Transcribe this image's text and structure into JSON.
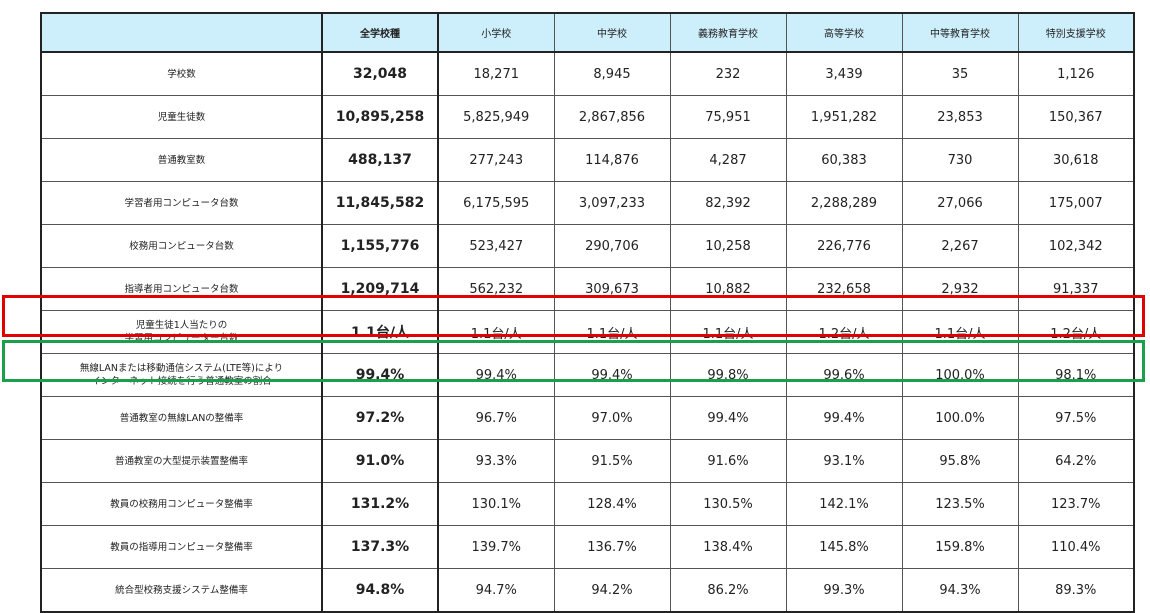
{
  "columns": [
    "",
    "全学校種",
    "小学校",
    "中学校",
    "義務教育学校",
    "高等学校",
    "中等教育学校",
    "特別支援学校"
  ],
  "rows": [
    {
      "label": "学校数",
      "values": [
        "32,048",
        "18,271",
        "8,945",
        "232",
        "3,439",
        "35",
        "1,126"
      ]
    },
    {
      "label": "児童生徒数",
      "values": [
        "10,895,258",
        "5,825,949",
        "2,867,856",
        "75,951",
        "1,951,282",
        "23,853",
        "150,367"
      ]
    },
    {
      "label": "普通教室数",
      "values": [
        "488,137",
        "277,243",
        "114,876",
        "4,287",
        "60,383",
        "730",
        "30,618"
      ]
    },
    {
      "label": "学習者用コンピュータ台数",
      "values": [
        "11,845,582",
        "6,175,595",
        "3,097,233",
        "82,392",
        "2,288,289",
        "27,066",
        "175,007"
      ]
    },
    {
      "label": "校務用コンピュータ台数",
      "values": [
        "1,155,776",
        "523,427",
        "290,706",
        "10,258",
        "226,776",
        "2,267",
        "102,342"
      ]
    },
    {
      "label": "指導者用コンピュータ台数",
      "values": [
        "1,209,714",
        "562,232",
        "309,673",
        "10,882",
        "232,658",
        "2,932",
        "91,337"
      ]
    },
    {
      "label": "児童生徒1人当たりの\n学習用コンピューター台数",
      "values": [
        "1.1台/人",
        "1.1台/人",
        "1.1台/人",
        "1.1台/人",
        "1.2台/人",
        "1.1台/人",
        "1.2台/人"
      ]
    },
    {
      "label": "無線LANまたは移動通信システム(LTE等)により\nインターネット接続を行う普通教室の割合",
      "values": [
        "99.4%",
        "99.4%",
        "99.4%",
        "99.8%",
        "99.6%",
        "100.0%",
        "98.1%"
      ]
    },
    {
      "label": "普通教室の無線LANの整備率",
      "values": [
        "97.2%",
        "96.7%",
        "97.0%",
        "99.4%",
        "99.4%",
        "100.0%",
        "97.5%"
      ]
    },
    {
      "label": "普通教室の大型提示装置整備率",
      "values": [
        "91.0%",
        "93.3%",
        "91.5%",
        "91.6%",
        "93.1%",
        "95.8%",
        "64.2%"
      ]
    },
    {
      "label": "教員の校務用コンピュータ整備率",
      "values": [
        "131.2%",
        "130.1%",
        "128.4%",
        "130.5%",
        "142.1%",
        "123.5%",
        "123.7%"
      ]
    },
    {
      "label": "教員の指導用コンピュータ整備率",
      "values": [
        "137.3%",
        "139.7%",
        "136.7%",
        "138.4%",
        "145.8%",
        "159.8%",
        "110.4%"
      ]
    },
    {
      "label": "統合型校務支援システム整備率",
      "values": [
        "94.8%",
        "94.7%",
        "94.2%",
        "86.2%",
        "99.3%",
        "94.3%",
        "89.3%"
      ]
    }
  ],
  "highlights": {
    "red_row": 6,
    "green_row": 7,
    "red": "#e00000",
    "green": "#1aa04a",
    "header_bg": "#cdeefb"
  }
}
